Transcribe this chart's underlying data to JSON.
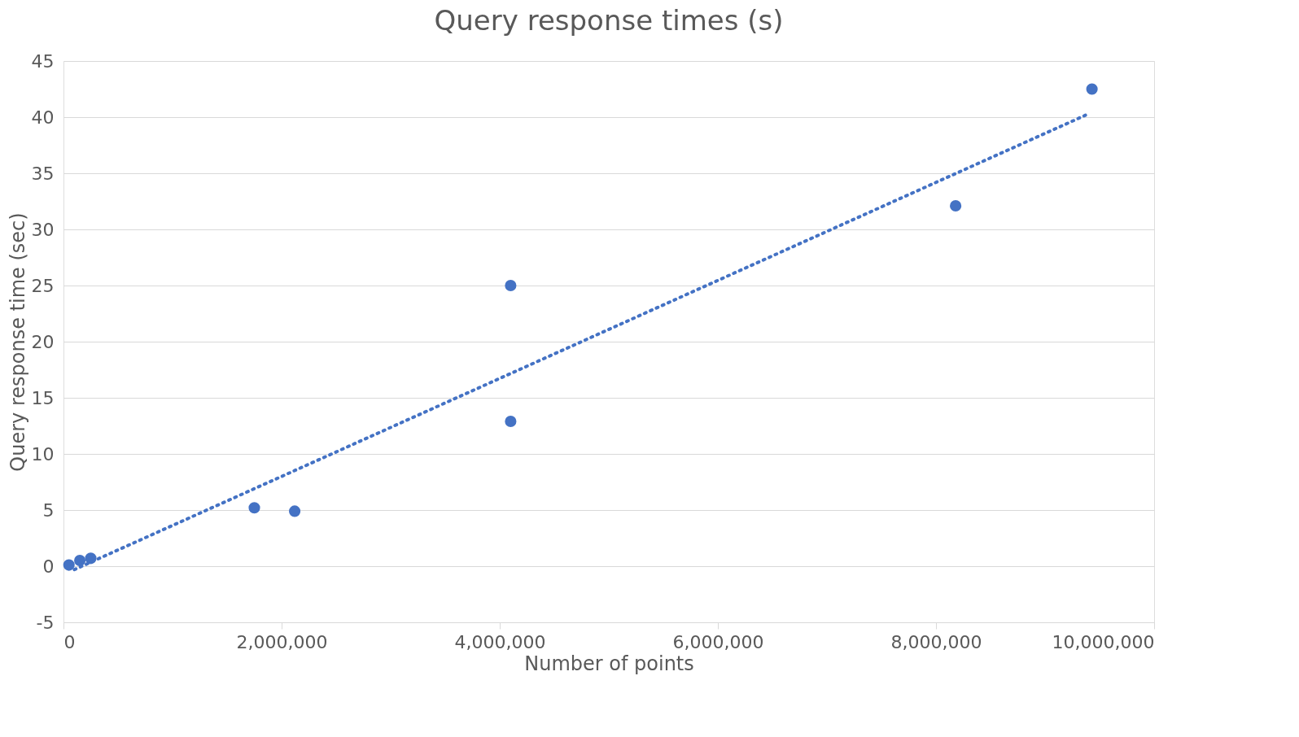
{
  "chart_data": {
    "type": "scatter",
    "title": "Query response times (s)",
    "xlabel": "Number of points",
    "ylabel": "Query response time (sec)",
    "xlim": [
      0,
      10000000
    ],
    "xticks": [
      {
        "value": 0,
        "label": "0"
      },
      {
        "value": 2000000,
        "label": "2,000,000"
      },
      {
        "value": 4000000,
        "label": "4,000,000"
      },
      {
        "value": 6000000,
        "label": "6,000,000"
      },
      {
        "value": 8000000,
        "label": "8,000,000"
      },
      {
        "value": 10000000,
        "label": "10,000,000"
      }
    ],
    "ylim": [
      -5,
      45
    ],
    "yticks": [
      -5,
      0,
      5,
      10,
      15,
      20,
      25,
      30,
      35,
      40,
      45
    ],
    "grid": "y",
    "legend": false,
    "series": [
      {
        "color": "#4472c4",
        "marker": "circle",
        "x": [
          50000,
          150000,
          250000,
          1750000,
          2120000,
          4100000,
          4100000,
          8180000,
          9430000
        ],
        "values": [
          0.1,
          0.5,
          0.7,
          5.2,
          4.9,
          25,
          12.9,
          32.1,
          42.5
        ]
      },
      {
        "type": "line",
        "line_style": "dotted",
        "color": "#4472c4",
        "x": [
          100000,
          9400000
        ],
        "values": [
          -0.3,
          40.3
        ]
      }
    ]
  }
}
